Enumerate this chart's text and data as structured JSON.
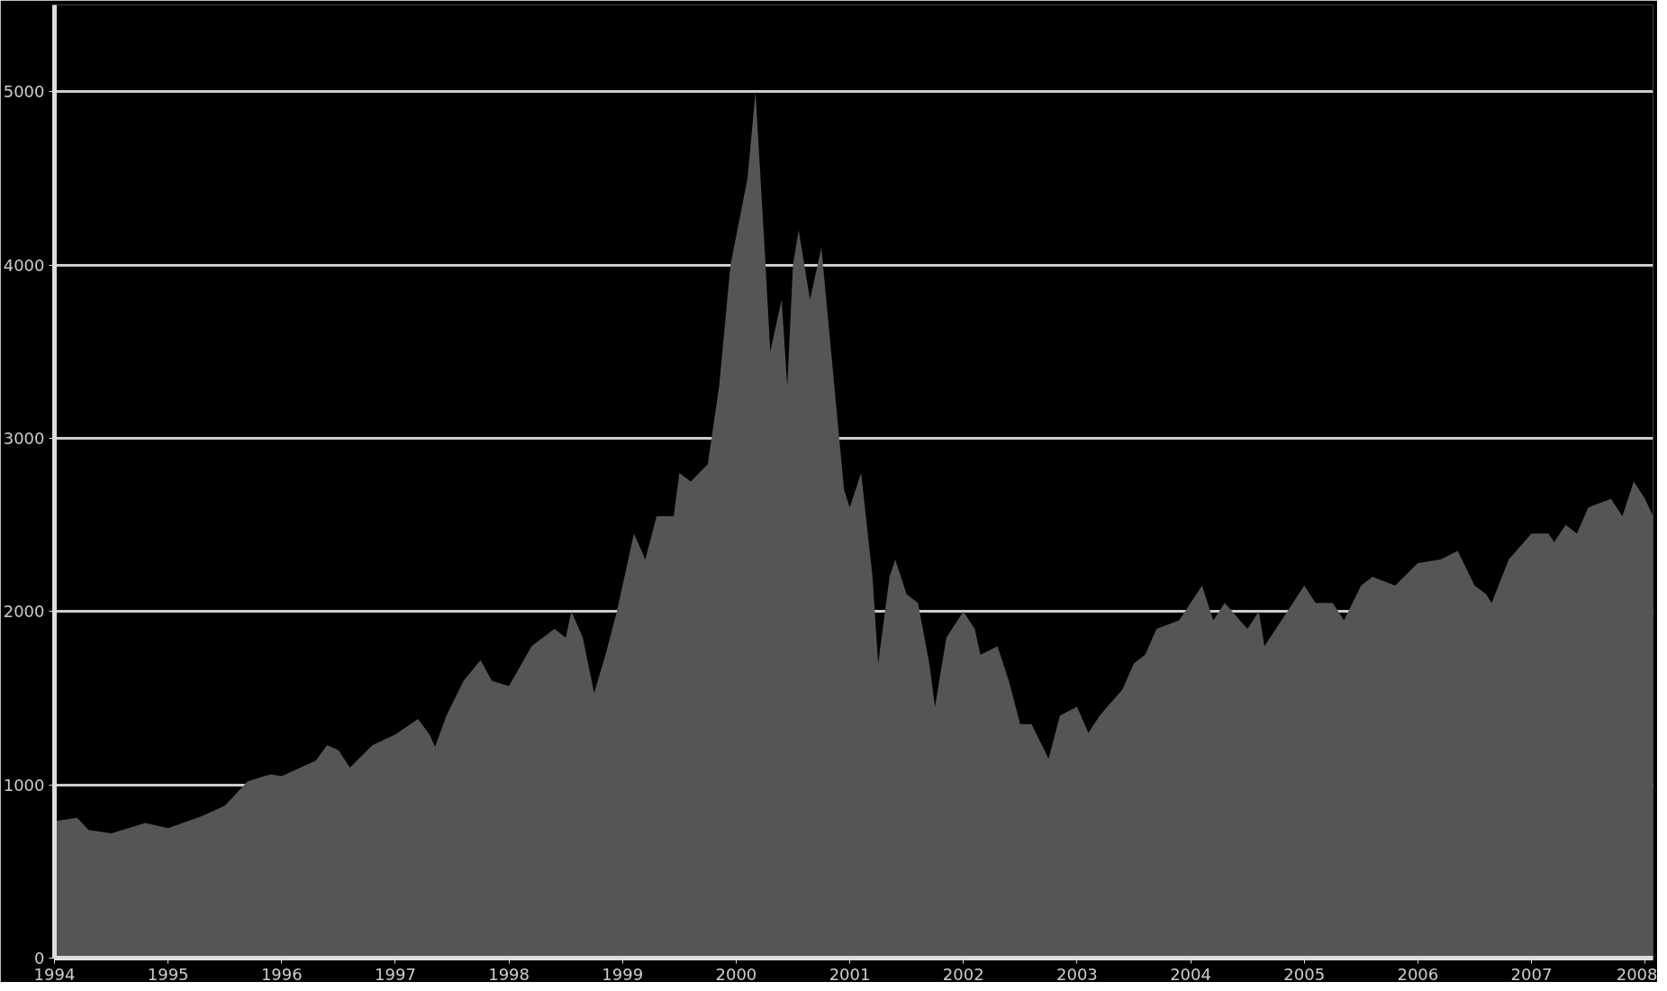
{
  "chart_data": {
    "type": "area",
    "color": "#555555",
    "x": [
      1994.0,
      1994.2,
      1994.3,
      1994.5,
      1994.8,
      1995.0,
      1995.3,
      1995.5,
      1995.7,
      1995.9,
      1996.0,
      1996.3,
      1996.4,
      1996.5,
      1996.6,
      1996.8,
      1997.0,
      1997.2,
      1997.3,
      1997.35,
      1997.45,
      1997.6,
      1997.75,
      1997.85,
      1998.0,
      1998.2,
      1998.4,
      1998.5,
      1998.55,
      1998.65,
      1998.75,
      1998.85,
      1998.95,
      1999.1,
      1999.2,
      1999.3,
      1999.45,
      1999.5,
      1999.6,
      1999.75,
      1999.85,
      1999.95,
      2000.1,
      2000.17,
      2000.25,
      2000.3,
      2000.4,
      2000.45,
      2000.5,
      2000.55,
      2000.65,
      2000.75,
      2000.85,
      2000.95,
      2001.0,
      2001.1,
      2001.2,
      2001.25,
      2001.35,
      2001.4,
      2001.5,
      2001.6,
      2001.7,
      2001.75,
      2001.85,
      2002.0,
      2002.1,
      2002.15,
      2002.3,
      2002.4,
      2002.5,
      2002.6,
      2002.75,
      2002.85,
      2003.0,
      2003.1,
      2003.2,
      2003.4,
      2003.5,
      2003.6,
      2003.7,
      2003.9,
      2004.0,
      2004.1,
      2004.2,
      2004.3,
      2004.5,
      2004.6,
      2004.65,
      2004.8,
      2005.0,
      2005.1,
      2005.25,
      2005.35,
      2005.5,
      2005.6,
      2005.8,
      2006.0,
      2006.2,
      2006.35,
      2006.5,
      2006.6,
      2006.65,
      2006.8,
      2007.0,
      2007.15,
      2007.2,
      2007.3,
      2007.4,
      2007.5,
      2007.7,
      2007.8,
      2007.9,
      2008.0,
      2008.07
    ],
    "values": [
      790,
      810,
      740,
      720,
      780,
      750,
      820,
      880,
      1020,
      1060,
      1050,
      1140,
      1230,
      1200,
      1100,
      1230,
      1290,
      1380,
      1290,
      1220,
      1400,
      1600,
      1720,
      1600,
      1570,
      1800,
      1900,
      1850,
      2000,
      1850,
      1530,
      1750,
      2000,
      2450,
      2300,
      2550,
      2550,
      2800,
      2750,
      2850,
      3300,
      4000,
      4500,
      5000,
      4100,
      3500,
      3800,
      3300,
      4000,
      4200,
      3800,
      4100,
      3400,
      2700,
      2600,
      2800,
      2200,
      1700,
      2200,
      2300,
      2100,
      2050,
      1700,
      1450,
      1850,
      2000,
      1900,
      1750,
      1800,
      1600,
      1350,
      1350,
      1150,
      1400,
      1450,
      1300,
      1400,
      1550,
      1700,
      1750,
      1900,
      1950,
      2050,
      2150,
      1950,
      2050,
      1900,
      2000,
      1800,
      1950,
      2150,
      2050,
      2050,
      1950,
      2150,
      2200,
      2150,
      2280,
      2300,
      2350,
      2150,
      2100,
      2050,
      2300,
      2450,
      2450,
      2400,
      2500,
      2450,
      2600,
      2650,
      2550,
      2750,
      2650,
      2550
    ],
    "xlim": [
      1994,
      2008.07
    ],
    "xticks": [
      1994,
      1995,
      1996,
      1997,
      1998,
      1999,
      2000,
      2001,
      2002,
      2003,
      2004,
      2005,
      2006,
      2007,
      2008
    ],
    "ylim": [
      0,
      5500
    ],
    "yticks": [
      0,
      1000,
      2000,
      3000,
      4000,
      5000
    ],
    "grid": "y"
  }
}
